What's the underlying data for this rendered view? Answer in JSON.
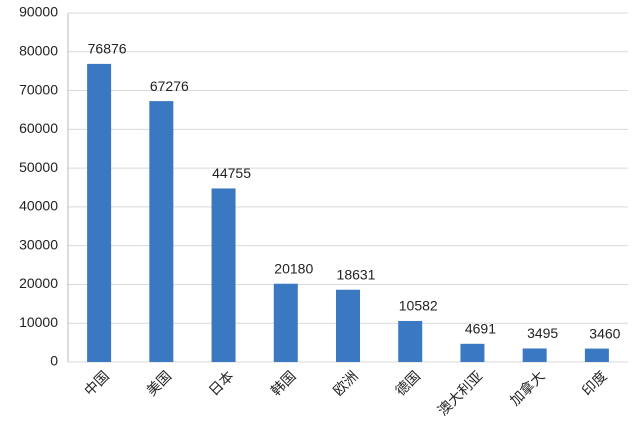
{
  "chart_data": {
    "type": "bar",
    "categories": [
      "中国",
      "美国",
      "日本",
      "韩国",
      "欧洲",
      "德国",
      "澳大利亚",
      "加拿大",
      "印度"
    ],
    "values": [
      76876,
      67276,
      44755,
      20180,
      18631,
      10582,
      4691,
      3495,
      3460
    ],
    "color": "#3a78c2",
    "ylim": [
      0,
      90000
    ],
    "yticks": [
      0,
      10000,
      20000,
      30000,
      40000,
      50000,
      60000,
      70000,
      80000,
      90000
    ],
    "grid": true
  }
}
